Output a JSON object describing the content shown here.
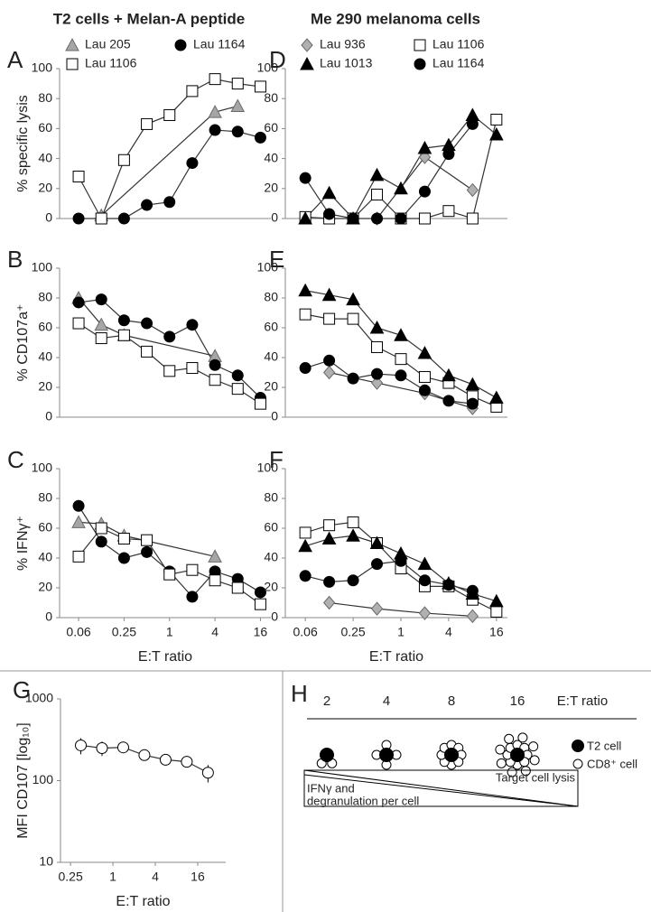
{
  "chart_data": [
    {
      "type": "line",
      "label": "A",
      "title": "T2 cells + Melan-A peptide",
      "y_label": "% specific lysis",
      "xscale": "log2",
      "x": [
        0.0625,
        0.125,
        0.25,
        0.5,
        1,
        2,
        4,
        8,
        16
      ],
      "xlim": [
        0.035,
        22
      ],
      "ylim": [
        0,
        100
      ],
      "yticks": [
        0,
        20,
        40,
        60,
        80,
        100
      ],
      "series": [
        {
          "name": "Lau 205",
          "marker": "triangle",
          "color": "#a6a6a6",
          "x": [
            0.125,
            4,
            8
          ],
          "values": [
            2,
            71,
            75
          ]
        },
        {
          "name": "Lau 1164",
          "marker": "circle",
          "color": "#000000",
          "values": [
            0,
            0,
            0,
            9,
            11,
            37,
            59,
            58,
            54
          ]
        },
        {
          "name": "Lau 1106",
          "marker": "square",
          "color": "#ffffff",
          "values": [
            28,
            0,
            39,
            63,
            69,
            85,
            93,
            90,
            88
          ]
        }
      ]
    },
    {
      "type": "line",
      "label": "B",
      "y_label": "% CD107a⁺",
      "xscale": "log2",
      "x": [
        0.0625,
        0.125,
        0.25,
        0.5,
        1,
        2,
        4,
        8,
        16
      ],
      "xlim": [
        0.035,
        22
      ],
      "ylim": [
        0,
        100
      ],
      "yticks": [
        0,
        20,
        40,
        60,
        80,
        100
      ],
      "series": [
        {
          "marker": "triangle",
          "color": "#a6a6a6",
          "x": [
            0.0625,
            0.125,
            0.25,
            4
          ],
          "values": [
            80,
            62,
            55,
            41
          ]
        },
        {
          "marker": "circle",
          "color": "#000000",
          "values": [
            77,
            79,
            65,
            63,
            54,
            62,
            35,
            28,
            13
          ]
        },
        {
          "marker": "square",
          "color": "#ffffff",
          "values": [
            63,
            53,
            55,
            44,
            31,
            33,
            25,
            19,
            9
          ]
        }
      ]
    },
    {
      "type": "line",
      "label": "C",
      "y_label": "% IFNγ⁺",
      "x_label": "E:T ratio",
      "xscale": "log2",
      "x": [
        0.0625,
        0.125,
        0.25,
        0.5,
        1,
        2,
        4,
        8,
        16
      ],
      "xlim": [
        0.035,
        22
      ],
      "ylim": [
        0,
        100
      ],
      "yticks": [
        0,
        20,
        40,
        60,
        80,
        100
      ],
      "xticks": [
        {
          "value": 0.0625,
          "label": "0.06"
        },
        0.25,
        1,
        4,
        16
      ],
      "series": [
        {
          "marker": "triangle",
          "color": "#a6a6a6",
          "x": [
            0.0625,
            0.125,
            0.25,
            4
          ],
          "values": [
            64,
            63,
            55,
            41
          ]
        },
        {
          "marker": "circle",
          "color": "#000000",
          "values": [
            75,
            51,
            40,
            44,
            31,
            14,
            31,
            26,
            17
          ]
        },
        {
          "marker": "square",
          "color": "#ffffff",
          "values": [
            41,
            60,
            53,
            52,
            29,
            32,
            25,
            20,
            9
          ]
        }
      ]
    },
    {
      "type": "line",
      "label": "D",
      "title": "Me 290 melanoma cells",
      "xscale": "log2",
      "x": [
        0.0625,
        0.125,
        0.25,
        0.5,
        1,
        2,
        4,
        8,
        16
      ],
      "xlim": [
        0.035,
        22
      ],
      "ylim": [
        0,
        100
      ],
      "yticks": [
        0,
        20,
        40,
        60,
        80,
        100
      ],
      "series": [
        {
          "name": "Lau 936",
          "marker": "diamond",
          "color": "#b0b0b0",
          "x": [
            0.5,
            2,
            8
          ],
          "values": [
            0,
            41,
            19
          ]
        },
        {
          "name": "Lau 1106",
          "marker": "square",
          "color": "#ffffff",
          "values": [
            1,
            0,
            0,
            16,
            0,
            0,
            5,
            0,
            66
          ]
        },
        {
          "name": "Lau 1013",
          "marker": "triangle",
          "color": "#000000",
          "values": [
            0,
            17,
            0,
            29,
            20,
            47,
            49,
            69,
            56
          ]
        },
        {
          "name": "Lau 1164",
          "marker": "circle",
          "color": "#000000",
          "x": [
            0.0625,
            0.125,
            0.25,
            0.5,
            1,
            2,
            4,
            8
          ],
          "values": [
            27,
            3,
            0,
            0,
            0,
            18,
            43,
            63
          ]
        }
      ]
    },
    {
      "type": "line",
      "label": "E",
      "xscale": "log2",
      "x": [
        0.0625,
        0.125,
        0.25,
        0.5,
        1,
        2,
        4,
        8,
        16
      ],
      "xlim": [
        0.035,
        22
      ],
      "ylim": [
        0,
        100
      ],
      "yticks": [
        0,
        20,
        40,
        60,
        80,
        100
      ],
      "series": [
        {
          "marker": "diamond",
          "color": "#b0b0b0",
          "x": [
            0.125,
            0.5,
            2,
            8
          ],
          "values": [
            30,
            23,
            16,
            6
          ]
        },
        {
          "marker": "square",
          "color": "#ffffff",
          "values": [
            69,
            66,
            66,
            47,
            39,
            27,
            23,
            14,
            7
          ]
        },
        {
          "marker": "triangle",
          "color": "#000000",
          "values": [
            85,
            82,
            79,
            60,
            55,
            43,
            28,
            22,
            13
          ]
        },
        {
          "marker": "circle",
          "color": "#000000",
          "x": [
            0.0625,
            0.125,
            0.25,
            0.5,
            1,
            2,
            4,
            8
          ],
          "values": [
            33,
            38,
            26,
            29,
            28,
            18,
            11,
            9
          ]
        }
      ]
    },
    {
      "type": "line",
      "label": "F",
      "x_label": "E:T ratio",
      "xscale": "log2",
      "x": [
        0.0625,
        0.125,
        0.25,
        0.5,
        1,
        2,
        4,
        8,
        16
      ],
      "xlim": [
        0.035,
        22
      ],
      "ylim": [
        0,
        100
      ],
      "yticks": [
        0,
        20,
        40,
        60,
        80,
        100
      ],
      "xticks": [
        {
          "value": 0.0625,
          "label": "0.06"
        },
        0.25,
        1,
        4,
        16
      ],
      "series": [
        {
          "marker": "diamond",
          "color": "#b0b0b0",
          "x": [
            0.125,
            0.5,
            2,
            8
          ],
          "values": [
            10,
            6,
            3,
            1
          ]
        },
        {
          "marker": "square",
          "color": "#ffffff",
          "values": [
            57,
            62,
            64,
            50,
            33,
            21,
            21,
            12,
            4
          ]
        },
        {
          "marker": "triangle",
          "color": "#000000",
          "values": [
            48,
            53,
            55,
            50,
            43,
            36,
            23,
            16,
            11
          ]
        },
        {
          "marker": "circle",
          "color": "#000000",
          "x": [
            0.0625,
            0.125,
            0.25,
            0.5,
            1,
            2,
            4,
            8
          ],
          "values": [
            28,
            24,
            25,
            36,
            38,
            25,
            22,
            18
          ]
        }
      ]
    },
    {
      "type": "line",
      "label": "G",
      "y_label": "MFI CD107 [log₁₀]",
      "x_label": "E:T ratio",
      "xscale": "log2",
      "yscale": "log",
      "x": [
        0.35,
        0.7,
        1.4,
        2.8,
        5.6,
        11.2,
        22.4
      ],
      "xlim": [
        0.18,
        40
      ],
      "ylim": [
        10,
        1000
      ],
      "yticks": [
        10,
        100,
        1000
      ],
      "xticks": [
        0.25,
        1,
        4,
        16
      ],
      "series": [
        {
          "marker": "circle",
          "color": "#ffffff",
          "values": [
            270,
            250,
            255,
            205,
            180,
            170,
            125
          ],
          "errors": [
            60,
            50,
            25,
            30,
            15,
            15,
            30
          ]
        }
      ]
    }
  ],
  "diagram": {
    "label": "H",
    "ratios": [
      2,
      4,
      8,
      16
    ],
    "ratio_label": "E:T ratio",
    "legend": [
      "T2 cell",
      "CD8⁺ cell"
    ],
    "top_label": "Target cell lysis",
    "bottom_label": [
      "IFNγ and",
      "degranulation per cell"
    ]
  }
}
